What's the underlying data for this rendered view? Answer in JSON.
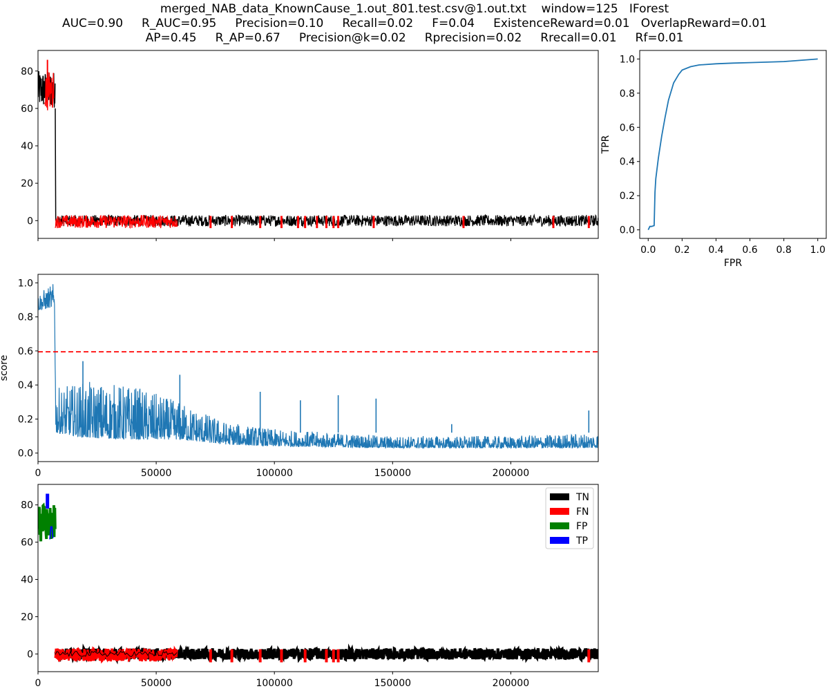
{
  "title": {
    "line1": "merged_NAB_data_KnownCause_1.out_801.test.csv@1.out.txt    window=125   IForest",
    "line2": "AUC=0.90     R_AUC=0.95     Precision=0.10     Recall=0.02     F=0.04     ExistenceReward=0.01   OverlapReward=0.01",
    "line3": "AP=0.45     R_AP=0.67     Precision@k=0.02     Rprecision=0.02     Rrecall=0.01     Rf=0.01"
  },
  "colors": {
    "series": "#000000",
    "anomaly": "#ff0000",
    "score": "#1f77b4",
    "threshold": "#ff0000",
    "roc": "#1f77b4",
    "TN": "#000000",
    "FN": "#ff0000",
    "FP": "#008000",
    "TP": "#0000ff"
  },
  "chart_data": [
    {
      "type": "line",
      "id": "series",
      "xlim": [
        0,
        237000
      ],
      "ylim": [
        -9.5,
        91
      ],
      "xticks": [
        0,
        50000,
        100000,
        150000,
        200000
      ],
      "xtick_labels": [
        "",
        "",
        "",
        "",
        ""
      ],
      "yticks": [
        0,
        20,
        40,
        60,
        80
      ],
      "ytick_labels": [
        "0",
        "20",
        "40",
        "60",
        "80"
      ],
      "regimes": [
        {
          "x_start": 0,
          "x_end": 7300,
          "y_low": 60,
          "y_high": 80,
          "peak_x": 4000,
          "peak_y": 86
        },
        {
          "x_start": 7500,
          "x_end": 237000,
          "y_low": -3,
          "y_high": 3
        }
      ],
      "anomaly_spans": [
        [
          2800,
          6800
        ],
        [
          7300,
          59000
        ]
      ],
      "anomaly_spikes": [
        73000,
        82000,
        94000,
        103000,
        110000,
        113000,
        118000,
        122000,
        125000,
        127000,
        142000,
        180000,
        218000,
        233000
      ],
      "anomaly_color_key": "anomaly"
    },
    {
      "type": "line",
      "id": "score",
      "ylabel": "score",
      "xlim": [
        0,
        237000
      ],
      "ylim": [
        -0.05,
        1.05
      ],
      "xticks": [
        0,
        50000,
        100000,
        150000,
        200000
      ],
      "xtick_labels": [
        "0",
        "50000",
        "100000",
        "150000",
        "200000"
      ],
      "yticks": [
        0.0,
        0.2,
        0.4,
        0.6,
        0.8,
        1.0
      ],
      "ytick_labels": [
        "0.0",
        "0.2",
        "0.4",
        "0.6",
        "0.8",
        "1.0"
      ],
      "threshold": 0.595,
      "envelope": [
        {
          "x": 0,
          "low": 0.84,
          "high": 0.94
        },
        {
          "x": 7000,
          "low": 0.86,
          "high": 1.0
        },
        {
          "x": 7500,
          "low": 0.12,
          "high": 0.38
        },
        {
          "x": 20000,
          "low": 0.09,
          "high": 0.42
        },
        {
          "x": 40000,
          "low": 0.08,
          "high": 0.4
        },
        {
          "x": 60000,
          "low": 0.08,
          "high": 0.3
        },
        {
          "x": 80000,
          "low": 0.05,
          "high": 0.18
        },
        {
          "x": 100000,
          "low": 0.04,
          "high": 0.14
        },
        {
          "x": 150000,
          "low": 0.03,
          "high": 0.1
        },
        {
          "x": 200000,
          "low": 0.03,
          "high": 0.1
        },
        {
          "x": 237000,
          "low": 0.03,
          "high": 0.12
        }
      ],
      "peaks": [
        {
          "x": 19000,
          "y": 0.54
        },
        {
          "x": 60000,
          "y": 0.46
        },
        {
          "x": 94000,
          "y": 0.36
        },
        {
          "x": 111000,
          "y": 0.31
        },
        {
          "x": 127000,
          "y": 0.34
        },
        {
          "x": 143000,
          "y": 0.32
        },
        {
          "x": 175000,
          "y": 0.17
        },
        {
          "x": 233000,
          "y": 0.25
        }
      ]
    },
    {
      "type": "line",
      "id": "classification",
      "xlim": [
        0,
        237000
      ],
      "ylim": [
        -9.5,
        91
      ],
      "xticks": [
        0,
        50000,
        100000,
        150000,
        200000
      ],
      "xtick_labels": [
        "0",
        "50000",
        "100000",
        "150000",
        "200000"
      ],
      "yticks": [
        0,
        20,
        40,
        60,
        80
      ],
      "ytick_labels": [
        "0",
        "20",
        "40",
        "60",
        "80"
      ],
      "legend": {
        "position": "top-right",
        "entries": [
          "TN",
          "FN",
          "FP",
          "TP"
        ]
      },
      "regimes": [
        {
          "label": "FP",
          "x_start": 0,
          "x_end": 7300,
          "y_low": 60,
          "y_high": 80
        },
        {
          "label": "TP",
          "x_start": 3000,
          "x_end": 6500,
          "y_low": 58,
          "y_high": 86
        },
        {
          "label": "TN",
          "x_start": 7500,
          "x_end": 237000,
          "y_low": -3,
          "y_high": 3
        },
        {
          "label": "FN",
          "x_start": 7300,
          "x_end": 59000,
          "y_low": -4,
          "y_high": 3
        }
      ],
      "fn_spikes": [
        73000,
        82000,
        94000,
        103000,
        113000,
        122000,
        125000,
        127000,
        233000
      ]
    },
    {
      "type": "line",
      "id": "roc",
      "xlabel": "FPR",
      "ylabel": "TPR",
      "xlim": [
        -0.05,
        1.05
      ],
      "ylim": [
        -0.05,
        1.05
      ],
      "xticks": [
        0.0,
        0.2,
        0.4,
        0.6,
        0.8,
        1.0
      ],
      "xtick_labels": [
        "0.0",
        "0.2",
        "0.4",
        "0.6",
        "0.8",
        "1.0"
      ],
      "yticks": [
        0.0,
        0.2,
        0.4,
        0.6,
        0.8,
        1.0
      ],
      "ytick_labels": [
        "0.0",
        "0.2",
        "0.4",
        "0.6",
        "0.8",
        "1.0"
      ],
      "x": [
        0,
        0.01,
        0.02,
        0.035,
        0.04,
        0.045,
        0.06,
        0.08,
        0.1,
        0.12,
        0.15,
        0.18,
        0.2,
        0.25,
        0.3,
        0.4,
        0.5,
        0.6,
        0.8,
        1.0
      ],
      "y": [
        0.0,
        0.02,
        0.02,
        0.025,
        0.22,
        0.3,
        0.42,
        0.55,
        0.66,
        0.76,
        0.86,
        0.91,
        0.935,
        0.955,
        0.965,
        0.972,
        0.976,
        0.979,
        0.985,
        1.0
      ]
    }
  ]
}
